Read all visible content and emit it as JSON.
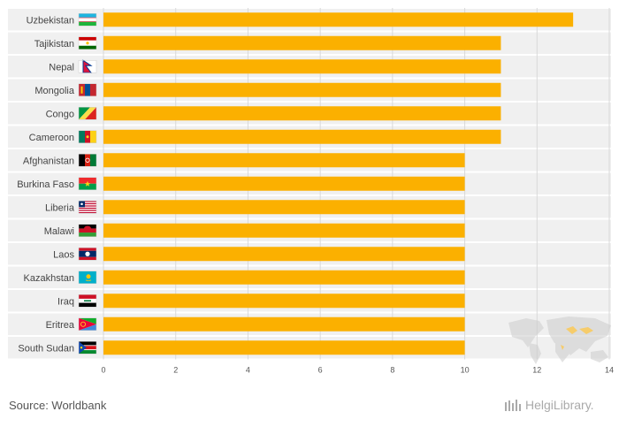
{
  "chart_data": {
    "type": "bar",
    "orientation": "horizontal",
    "categories": [
      "Uzbekistan",
      "Tajikistan",
      "Nepal",
      "Mongolia",
      "Congo",
      "Cameroon",
      "Afghanistan",
      "Burkina Faso",
      "Liberia",
      "Malawi",
      "Laos",
      "Kazakhstan",
      "Iraq",
      "Eritrea",
      "South Sudan"
    ],
    "values": [
      13,
      11,
      11,
      11,
      11,
      11,
      10,
      10,
      10,
      10,
      10,
      10,
      10,
      10,
      10
    ],
    "xlim": [
      0,
      14
    ],
    "xticks": [
      0,
      2,
      4,
      6,
      8,
      10,
      12,
      14
    ],
    "grid": true,
    "bar_color": "#fbb000"
  },
  "footer": {
    "source": "Source: Worldbank",
    "logo_text": "HelgiLibrary."
  }
}
